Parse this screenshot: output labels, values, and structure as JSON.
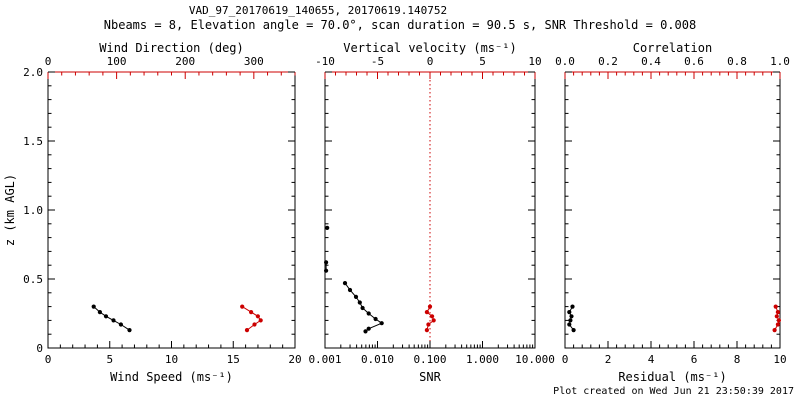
{
  "header": {
    "title": "VAD_97_20170619_140655, 20170619.140752",
    "subtitle": "Nbeams = 8, Elevation angle = 70.0°, scan duration = 90.5 s, SNR Threshold = 0.008"
  },
  "footer": {
    "created": "Plot created on Wed Jun 21 23:50:39 2017"
  },
  "colors": {
    "axis": "#000000",
    "accent": "#cc0000",
    "background": "#ffffff"
  },
  "chart_data": [
    {
      "id": "wind",
      "type": "scatter",
      "ylabel": "z (km AGL)",
      "xlabel_bottom": "Wind Speed (ms⁻¹)",
      "xlabel_top": "Wind Direction (deg)",
      "x_bottom": {
        "min": 0,
        "max": 20,
        "ticks": [
          0,
          5,
          10,
          15,
          20
        ],
        "tick_labels": [
          "0",
          "5",
          "10",
          "15",
          "20"
        ]
      },
      "x_top": {
        "min": 0,
        "max": 360,
        "ticks": [
          0,
          100,
          200,
          300
        ],
        "tick_labels": [
          "0",
          "100",
          "200",
          "300"
        ]
      },
      "y": {
        "min": 0,
        "max": 2,
        "ticks": [
          0,
          0.5,
          1,
          1.5,
          2
        ],
        "tick_labels": [
          "0",
          "0.5",
          "1.0",
          "1.5",
          "2.0"
        ],
        "labels": true
      },
      "series": [
        {
          "name": "wind-speed",
          "axis": "bottom",
          "color": "#000000",
          "z": [
            0.3,
            0.26,
            0.23,
            0.2,
            0.17,
            0.13
          ],
          "values": [
            3.7,
            4.2,
            4.7,
            5.3,
            5.9,
            6.6
          ]
        },
        {
          "name": "wind-direction",
          "axis": "top",
          "color": "#cc0000",
          "z": [
            0.3,
            0.26,
            0.23,
            0.2,
            0.17,
            0.13
          ],
          "values": [
            283,
            296,
            306,
            310,
            301,
            290
          ]
        }
      ]
    },
    {
      "id": "snr",
      "type": "scatter",
      "xlabel_bottom": "SNR",
      "xlabel_top": "Vertical velocity (ms⁻¹)",
      "x_bottom": {
        "scale": "log",
        "min": 0.001,
        "max": 10,
        "ticks": [
          0.001,
          0.01,
          0.1,
          1,
          10
        ],
        "tick_labels": [
          "0.001",
          "0.010",
          "0.100",
          "1.000",
          "10.000"
        ]
      },
      "x_top": {
        "min": -10,
        "max": 10,
        "ticks": [
          -10,
          -5,
          0,
          5,
          10
        ],
        "tick_labels": [
          "-10",
          "-5",
          "0",
          "5",
          "10"
        ]
      },
      "y": {
        "min": 0,
        "max": 2,
        "ticks": [
          0,
          0.5,
          1,
          1.5,
          2
        ],
        "tick_labels": [
          "0",
          "0.5",
          "1.0",
          "1.5",
          "2.0"
        ],
        "labels": false
      },
      "refline": {
        "axis": "top",
        "value": 0,
        "style": "dotted",
        "color": "#cc0000"
      },
      "series": [
        {
          "name": "snr-isolated-point",
          "axis": "bottom",
          "color": "#000000",
          "z": [
            0.87
          ],
          "values": [
            0.0011
          ]
        },
        {
          "name": "snr-edge-segment",
          "axis": "bottom",
          "color": "#000000",
          "z": [
            0.62,
            0.56
          ],
          "values": [
            0.00105,
            0.00105
          ]
        },
        {
          "name": "snr-profile",
          "axis": "bottom",
          "color": "#000000",
          "z": [
            0.47,
            0.42,
            0.37,
            0.33,
            0.29,
            0.25,
            0.21,
            0.18,
            0.14,
            0.12
          ],
          "values": [
            0.0024,
            0.003,
            0.0039,
            0.0046,
            0.0052,
            0.0068,
            0.0092,
            0.012,
            0.0068,
            0.0059
          ]
        },
        {
          "name": "vertical-velocity",
          "axis": "top",
          "color": "#cc0000",
          "z": [
            0.3,
            0.26,
            0.23,
            0.2,
            0.17,
            0.13
          ],
          "values": [
            0.0,
            -0.3,
            0.2,
            0.35,
            -0.15,
            -0.3
          ]
        }
      ]
    },
    {
      "id": "residual",
      "type": "scatter",
      "xlabel_bottom": "Residual (ms⁻¹)",
      "xlabel_top": "Correlation",
      "x_bottom": {
        "min": 0,
        "max": 10,
        "ticks": [
          0,
          2,
          4,
          6,
          8,
          10
        ],
        "tick_labels": [
          "0",
          "2",
          "4",
          "6",
          "8",
          "10"
        ]
      },
      "x_top": {
        "min": 0,
        "max": 1,
        "ticks": [
          0,
          0.2,
          0.4,
          0.6,
          0.8,
          1
        ],
        "tick_labels": [
          "0.0",
          "0.2",
          "0.4",
          "0.6",
          "0.8",
          "1.0"
        ]
      },
      "y": {
        "min": 0,
        "max": 2,
        "ticks": [
          0,
          0.5,
          1,
          1.5,
          2
        ],
        "tick_labels": [
          "0",
          "0.5",
          "1.0",
          "1.5",
          "2.0"
        ],
        "labels": false
      },
      "series": [
        {
          "name": "residual",
          "axis": "bottom",
          "color": "#000000",
          "z": [
            0.3,
            0.26,
            0.23,
            0.2,
            0.17,
            0.13
          ],
          "values": [
            0.35,
            0.2,
            0.3,
            0.25,
            0.2,
            0.4
          ]
        },
        {
          "name": "correlation",
          "axis": "top",
          "color": "#cc0000",
          "z": [
            0.3,
            0.26,
            0.23,
            0.2,
            0.17,
            0.13
          ],
          "values": [
            0.98,
            0.99,
            0.985,
            0.995,
            0.99,
            0.975
          ]
        }
      ]
    }
  ]
}
